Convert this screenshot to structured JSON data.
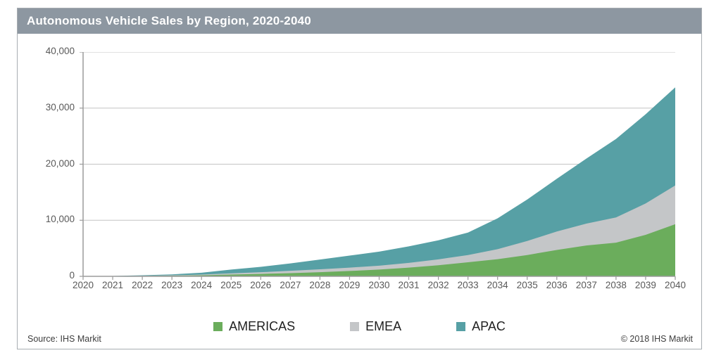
{
  "title": "Autonomous Vehicle Sales by Region, 2020-2040",
  "source": "Source: IHS Markit",
  "copyright": "© 2018 IHS Markit",
  "colors": {
    "title_bar_bg": "#8D97A1",
    "title_text": "#FFFFFF",
    "americas": "#6BAD5C",
    "emea": "#C4C6C8",
    "apac": "#57A0A5",
    "grid_line": "#C4C4C4",
    "axis_line": "#9B9B9B",
    "tick_label": "#595959",
    "card_border": "#A8ADB2"
  },
  "legend": [
    {
      "label": "AMERICAS",
      "color": "#6BAD5C"
    },
    {
      "label": "EMEA",
      "color": "#C4C6C8"
    },
    {
      "label": "APAC",
      "color": "#57A0A5"
    }
  ],
  "chart_data": {
    "type": "area",
    "stacked": true,
    "title": "Autonomous Vehicle Sales by Region, 2020-2040",
    "xlabel": "",
    "ylabel": "",
    "x": [
      2020,
      2021,
      2022,
      2023,
      2024,
      2025,
      2026,
      2027,
      2028,
      2029,
      2030,
      2031,
      2032,
      2033,
      2034,
      2035,
      2036,
      2037,
      2038,
      2039,
      2040
    ],
    "x_tick_labels": [
      "2020",
      "2021",
      "2022",
      "2023",
      "2024",
      "2025",
      "2026",
      "2027",
      "2028",
      "2029",
      "2030",
      "2031",
      "2032",
      "2033",
      "2034",
      "2035",
      "2036",
      "2037",
      "2038",
      "2039",
      "2040"
    ],
    "series": [
      {
        "name": "AMERICAS",
        "color": "#6BAD5C",
        "values": [
          0,
          20,
          60,
          115,
          190,
          310,
          430,
          570,
          740,
          950,
          1200,
          1550,
          1980,
          2500,
          3050,
          3800,
          4700,
          5500,
          6000,
          7400,
          9300
        ]
      },
      {
        "name": "EMEA",
        "color": "#C4C6C8",
        "values": [
          0,
          10,
          35,
          65,
          120,
          220,
          310,
          410,
          510,
          600,
          700,
          850,
          1050,
          1300,
          1800,
          2500,
          3300,
          3900,
          4500,
          5600,
          6900
        ]
      },
      {
        "name": "APAC",
        "color": "#57A0A5",
        "values": [
          0,
          25,
          85,
          170,
          340,
          670,
          960,
          1320,
          1750,
          2150,
          2500,
          2950,
          3400,
          4000,
          5500,
          7400,
          9400,
          11600,
          14000,
          15900,
          17500
        ]
      }
    ],
    "ylim": [
      0,
      40000
    ],
    "y_tick_values": [
      40000,
      30000,
      20000,
      10000,
      0
    ],
    "y_tick_labels": [
      "40,000",
      "30,000",
      "20,000",
      "10,000",
      "0"
    ],
    "grid": true,
    "legend_position": "bottom"
  }
}
